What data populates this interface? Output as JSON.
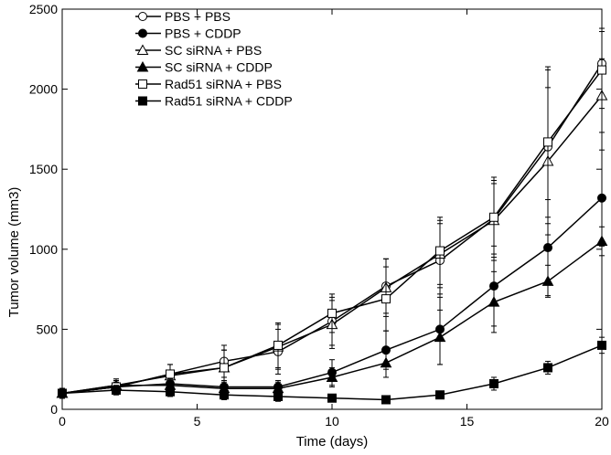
{
  "chart_data": {
    "type": "line",
    "title": "",
    "xlabel": "Time (days)",
    "ylabel": "Tumor volume (mm3)",
    "xlim": [
      0,
      20
    ],
    "ylim": [
      0,
      2500
    ],
    "xticks": [
      0,
      5,
      10,
      15,
      20
    ],
    "yticks": [
      0,
      500,
      1000,
      1500,
      2000,
      2500
    ],
    "grid": false,
    "legend_position": "top-left",
    "series": [
      {
        "name": "PBS + PBS",
        "marker": "circle-open",
        "x": [
          0,
          2,
          4,
          6,
          8,
          10,
          12,
          14,
          16,
          18,
          20
        ],
        "y": [
          100,
          140,
          220,
          300,
          360,
          550,
          770,
          930,
          1190,
          1640,
          2160
        ],
        "err": [
          30,
          40,
          60,
          100,
          140,
          150,
          170,
          230,
          260,
          480,
          220
        ]
      },
      {
        "name": "PBS + CDDP",
        "marker": "circle-filled",
        "x": [
          0,
          2,
          4,
          6,
          8,
          10,
          12,
          14,
          16,
          18,
          20
        ],
        "y": [
          100,
          140,
          160,
          140,
          140,
          230,
          370,
          500,
          770,
          1010,
          1320
        ],
        "err": [
          30,
          30,
          40,
          40,
          40,
          80,
          120,
          220,
          250,
          300,
          300
        ]
      },
      {
        "name": "SC siRNA + PBS",
        "marker": "triangle-open",
        "x": [
          0,
          2,
          4,
          6,
          8,
          10,
          12,
          14,
          16,
          18,
          20
        ],
        "y": [
          100,
          150,
          210,
          260,
          390,
          530,
          760,
          970,
          1180,
          1550,
          1960
        ],
        "err": [
          30,
          40,
          70,
          110,
          140,
          150,
          180,
          210,
          230,
          460,
          230
        ]
      },
      {
        "name": "SC siRNA + CDDP",
        "marker": "triangle-filled",
        "x": [
          0,
          2,
          4,
          6,
          8,
          10,
          12,
          14,
          16,
          18,
          20
        ],
        "y": [
          100,
          150,
          150,
          130,
          130,
          200,
          290,
          450,
          670,
          800,
          1050
        ],
        "err": [
          30,
          30,
          40,
          40,
          40,
          60,
          90,
          170,
          190,
          100,
          90
        ]
      },
      {
        "name": "Rad51 siRNA + PBS",
        "marker": "square-open",
        "x": [
          0,
          2,
          4,
          6,
          8,
          10,
          12,
          14,
          16,
          18,
          20
        ],
        "y": [
          100,
          140,
          220,
          260,
          400,
          600,
          690,
          990,
          1200,
          1670,
          2120
        ],
        "err": [
          30,
          40,
          60,
          110,
          140,
          120,
          200,
          210,
          230,
          470,
          240
        ]
      },
      {
        "name": "Rad51 siRNA + CDDP",
        "marker": "square-filled",
        "x": [
          0,
          2,
          4,
          6,
          8,
          10,
          12,
          14,
          16,
          18,
          20
        ],
        "y": [
          100,
          120,
          110,
          90,
          80,
          70,
          60,
          90,
          160,
          260,
          400
        ],
        "err": [
          30,
          30,
          30,
          30,
          30,
          20,
          20,
          20,
          40,
          40,
          50
        ]
      }
    ]
  }
}
